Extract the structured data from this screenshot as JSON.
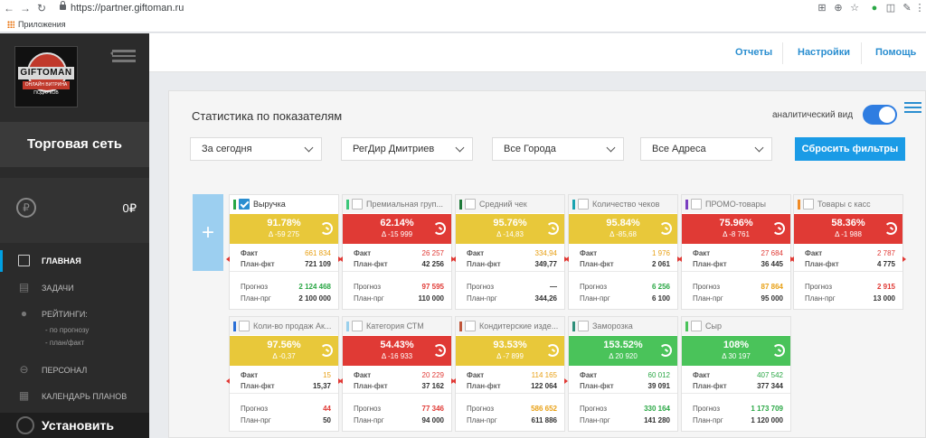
{
  "browser": {
    "url": "https://partner.giftoman.ru",
    "bookmarks_label": "Приложения"
  },
  "sidebar": {
    "logo_text": "GIFTOMAN",
    "logo_sub": "ОНЛАЙН ВИТРИНА ПОДАРКОВ",
    "network": "Торговая сеть",
    "balance_icon": "₽",
    "balance": "0₽",
    "items": [
      {
        "label": "ГЛАВНАЯ",
        "icon": "chart-icon"
      },
      {
        "label": "ЗАДАЧИ",
        "icon": "tasks-icon"
      },
      {
        "label": "РЕЙТИНГИ:",
        "icon": "rating-icon"
      },
      {
        "label": "ПЕРСОНАЛ",
        "icon": "staff-icon"
      },
      {
        "label": "КАЛЕНДАРЬ ПЛАНОВ",
        "icon": "calendar-icon"
      }
    ],
    "sub_items": [
      "- по прогнозу",
      "- план/факт"
    ],
    "install": "Установить"
  },
  "topnav": {
    "reports": "Отчеты",
    "settings": "Настройки",
    "help": "Помощь"
  },
  "panel": {
    "title": "Статистика по показателям",
    "analytic_label": "аналитический вид",
    "analytic_on": true,
    "filters": [
      "За сегодня",
      "РегДир Дмитриев",
      "Все Города",
      "Все Адреса"
    ],
    "reset": "Сбросить фильтры",
    "add": "+"
  },
  "colors": {
    "yellow": "#e8c83a",
    "red": "#e03a35",
    "green": "#4ac35a",
    "accent": "#1a9be6"
  },
  "cards": [
    {
      "name": "Выручка",
      "checked": true,
      "bar": "#27a745",
      "status": "yellow",
      "pct": "91.78%",
      "delta": "Δ -59 275",
      "fact": "661 834",
      "fact_c": "#e8a015",
      "plan_fact": "721 109",
      "fact_tri": "left",
      "forecast": "2 124 468",
      "forecast_c": "#2aa745",
      "plan_prg": "2 100 000"
    },
    {
      "name": "Премиальная груп...",
      "checked": false,
      "bar": "#3cc77a",
      "status": "red",
      "pct": "62.14%",
      "delta": "Δ -15 999",
      "fact": "26 257",
      "fact_c": "#e03a35",
      "plan_fact": "42 256",
      "fact_tri": "left",
      "forecast": "97 595",
      "forecast_c": "#e03a35",
      "plan_prg": "110 000"
    },
    {
      "name": "Средний чек",
      "checked": false,
      "bar": "#1f7a3a",
      "status": "yellow",
      "pct": "95.76%",
      "delta": "Δ -14,83",
      "fact": "334,94",
      "fact_c": "#e8a015",
      "plan_fact": "349,77",
      "fact_tri": "left",
      "forecast": "—",
      "forecast_c": "#333333",
      "plan_prg": "344,26"
    },
    {
      "name": "Количество чеков",
      "checked": false,
      "bar": "#1aa3b0",
      "status": "yellow",
      "pct": "95.84%",
      "delta": "Δ -85,68",
      "fact": "1 976",
      "fact_c": "#e8a015",
      "plan_fact": "2 061",
      "fact_tri": "left",
      "forecast": "6 256",
      "forecast_c": "#2aa745",
      "plan_prg": "6 100"
    },
    {
      "name": "ПРОМО-товары",
      "checked": false,
      "bar": "#7a3fc0",
      "status": "red",
      "pct": "75.96%",
      "delta": "Δ -8 761",
      "fact": "27 684",
      "fact_c": "#e03a35",
      "plan_fact": "36 445",
      "fact_tri": "left",
      "forecast": "87 864",
      "forecast_c": "#e8a015",
      "plan_prg": "95 000"
    },
    {
      "name": "Товары с касс",
      "checked": false,
      "bar": "#f08a24",
      "status": "red",
      "pct": "58.36%",
      "delta": "Δ -1 988",
      "fact": "2 787",
      "fact_c": "#e03a35",
      "plan_fact": "4 775",
      "fact_tri": "left",
      "forecast": "2 915",
      "forecast_c": "#e03a35",
      "plan_prg": "13 000"
    },
    {
      "name": "Коли-во продаж Ак...",
      "checked": false,
      "bar": "#2a6fd6",
      "status": "yellow",
      "pct": "97.56%",
      "delta": "Δ -0,37",
      "fact": "15",
      "fact_c": "#e8a015",
      "plan_fact": "15,37",
      "fact_tri": "right",
      "forecast": "44",
      "forecast_c": "#e03a35",
      "plan_prg": "50"
    },
    {
      "name": "Категория СТМ",
      "checked": false,
      "bar": "#9ad0ec",
      "status": "red",
      "pct": "54.43%",
      "delta": "Δ -16 933",
      "fact": "20 229",
      "fact_c": "#e03a35",
      "plan_fact": "37 162",
      "fact_tri": "right",
      "forecast": "77 346",
      "forecast_c": "#e03a35",
      "plan_prg": "94 000"
    },
    {
      "name": "Кондитерские изде...",
      "checked": false,
      "bar": "#c0563a",
      "status": "yellow",
      "pct": "93.53%",
      "delta": "Δ -7 899",
      "fact": "114 165",
      "fact_c": "#e8a015",
      "plan_fact": "122 064",
      "fact_tri": "right",
      "forecast": "586 652",
      "forecast_c": "#e8a015",
      "plan_prg": "611 886"
    },
    {
      "name": "Заморозка",
      "checked": false,
      "bar": "#2f8f7a",
      "status": "green",
      "pct": "153.52%",
      "delta": "Δ 20 920",
      "fact": "60 012",
      "fact_c": "#2aa745",
      "plan_fact": "39 091",
      "fact_tri": "none",
      "forecast": "330 164",
      "forecast_c": "#2aa745",
      "plan_prg": "141 280"
    },
    {
      "name": "Сыр",
      "checked": false,
      "bar": "#4ac35a",
      "status": "green",
      "pct": "108%",
      "delta": "Δ 30 197",
      "fact": "407 542",
      "fact_c": "#2aa745",
      "plan_fact": "377 344",
      "fact_tri": "none",
      "forecast": "1 173 709",
      "forecast_c": "#2aa745",
      "plan_prg": "1 120 000"
    }
  ],
  "labels": {
    "fact": "Факт",
    "plan_fact": "План-фкт",
    "forecast": "Прогноз",
    "plan_prg": "План-прг"
  }
}
